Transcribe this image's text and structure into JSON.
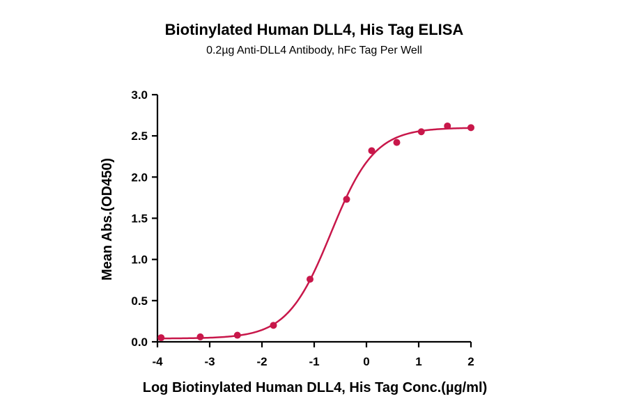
{
  "chart_data": {
    "type": "scatter",
    "title": "Biotinylated Human DLL4, His Tag ELISA",
    "subtitle": "0.2µg Anti-DLL4 Antibody, hFc Tag Per Well",
    "xlabel": "Log Biotinylated Human DLL4, His Tag Conc.(µg/ml)",
    "ylabel": "Mean Abs.(OD450)",
    "xlim": [
      -4,
      2
    ],
    "ylim": [
      0,
      3
    ],
    "xticks": [
      "-4",
      "-3",
      "-2",
      "-1",
      "0",
      "1",
      "2"
    ],
    "yticks": [
      "0.0",
      "0.5",
      "1.0",
      "1.5",
      "2.0",
      "2.5",
      "3.0"
    ],
    "grid": false,
    "series": [
      {
        "x": [
          -3.93,
          -3.18,
          -2.47,
          -1.78,
          -1.08,
          -0.38,
          0.1,
          0.58,
          1.05,
          1.55,
          2.0
        ],
        "y": [
          0.05,
          0.06,
          0.08,
          0.2,
          0.76,
          1.73,
          2.32,
          2.42,
          2.55,
          2.62,
          2.6
        ],
        "color": "#c8174a",
        "fit": "4PL"
      }
    ]
  }
}
